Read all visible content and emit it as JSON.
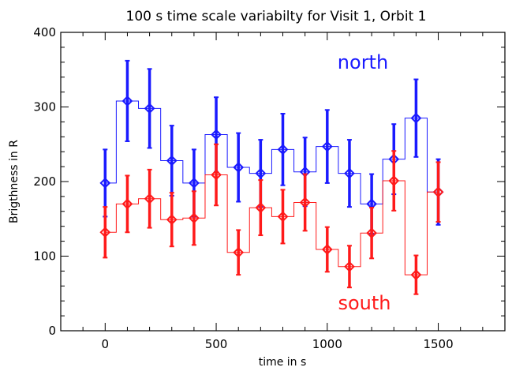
{
  "chart_data": {
    "type": "line",
    "title": "100 s time scale variabilty for Visit 1, Orbit 1",
    "xlabel": "time in s",
    "ylabel": "Brigthness in R",
    "xlim": [
      -200,
      1800
    ],
    "ylim": [
      0,
      400
    ],
    "x_ticks": [
      0,
      500,
      1000,
      1500
    ],
    "y_ticks": [
      0,
      100,
      200,
      300,
      400
    ],
    "x_minor_step": 100,
    "y_minor_step": 20,
    "grid": false,
    "legend": "none",
    "x": [
      0,
      100,
      200,
      300,
      400,
      500,
      600,
      700,
      800,
      900,
      1000,
      1100,
      1200,
      1300,
      1400,
      1500
    ],
    "series": [
      {
        "name": "north",
        "color": "#1a1aff",
        "values": [
          198,
          308,
          298,
          228,
          198,
          263,
          219,
          211,
          243,
          213,
          247,
          211,
          170,
          230,
          285,
          186
        ],
        "errors": [
          45,
          54,
          53,
          47,
          45,
          50,
          46,
          45,
          48,
          46,
          49,
          45,
          40,
          47,
          52,
          44
        ]
      },
      {
        "name": "south",
        "color": "#ff1a1a",
        "values": [
          132,
          170,
          177,
          149,
          151,
          209,
          105,
          165,
          153,
          172,
          109,
          86,
          131,
          201,
          75,
          186
        ],
        "errors": [
          34,
          38,
          39,
          36,
          36,
          41,
          30,
          37,
          36,
          38,
          30,
          28,
          34,
          40,
          26,
          40
        ]
      }
    ]
  }
}
